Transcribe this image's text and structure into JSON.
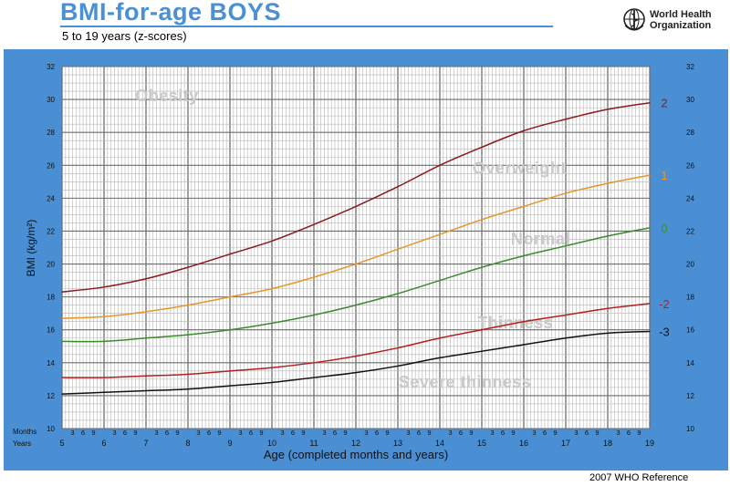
{
  "header": {
    "title": "BMI-for-age  BOYS",
    "subtitle": "5 to 19 years (z-scores)",
    "org_line1": "World Health",
    "org_line2": "Organization",
    "logo_icon": "who-emblem-icon"
  },
  "footer": {
    "reference": "2007  WHO Reference"
  },
  "colors": {
    "frame": "#4a8fd4",
    "plot_bg": "#ffffff",
    "grid_minor": "#b5b5b5",
    "grid_major": "#6e6e6e",
    "z2": "#8b1a1a",
    "z1": "#e8962a",
    "z0": "#3d8b2e",
    "zm2": "#b51f1f",
    "zm3": "#111111",
    "zone_text": "#c9c9c9"
  },
  "chart_data": {
    "type": "line",
    "title": "BMI-for-age  BOYS",
    "subtitle": "5 to 19 years (z-scores)",
    "xlabel": "Age (completed months and years)",
    "ylabel": "BMI (kg/m²)",
    "xlim": [
      5,
      19
    ],
    "ylim": [
      10,
      32
    ],
    "y_ticks": [
      "10",
      "12",
      "14",
      "16",
      "18",
      "20",
      "22",
      "24",
      "26",
      "28",
      "30",
      "32"
    ],
    "x_year_ticks": [
      "5",
      "6",
      "7",
      "8",
      "9",
      "10",
      "11",
      "12",
      "13",
      "14",
      "15",
      "16",
      "17",
      "18",
      "19"
    ],
    "month_tick_labels": [
      "3",
      "6",
      "9"
    ],
    "axis_row_labels": {
      "months": "Months",
      "years": "Years"
    },
    "zones": [
      {
        "label": "Obesity",
        "x": 7.5,
        "y": 29.9
      },
      {
        "label": "Overweight",
        "x": 15.9,
        "y": 25.5
      },
      {
        "label": "Normal",
        "x": 16.4,
        "y": 21.2
      },
      {
        "label": "Thinness",
        "x": 15.8,
        "y": 16.1
      },
      {
        "label": "Severe thinness",
        "x": 14.6,
        "y": 12.5
      }
    ],
    "grid": true,
    "series": [
      {
        "key": "z2",
        "name": "2",
        "x": [
          5,
          6,
          7,
          8,
          9,
          10,
          11,
          12,
          13,
          14,
          15,
          16,
          17,
          18,
          19
        ],
        "values": [
          18.3,
          18.6,
          19.1,
          19.8,
          20.6,
          21.4,
          22.4,
          23.5,
          24.7,
          26.0,
          27.1,
          28.1,
          28.8,
          29.4,
          29.8
        ]
      },
      {
        "key": "z1",
        "name": "1",
        "x": [
          5,
          6,
          7,
          8,
          9,
          10,
          11,
          12,
          13,
          14,
          15,
          16,
          17,
          18,
          19
        ],
        "values": [
          16.7,
          16.8,
          17.1,
          17.5,
          18.0,
          18.5,
          19.2,
          20.0,
          20.9,
          21.8,
          22.7,
          23.5,
          24.3,
          24.9,
          25.4
        ]
      },
      {
        "key": "z0",
        "name": "0",
        "x": [
          5,
          6,
          7,
          8,
          9,
          10,
          11,
          12,
          13,
          14,
          15,
          16,
          17,
          18,
          19
        ],
        "values": [
          15.3,
          15.3,
          15.5,
          15.7,
          16.0,
          16.4,
          16.9,
          17.5,
          18.2,
          19.0,
          19.8,
          20.5,
          21.1,
          21.7,
          22.2
        ]
      },
      {
        "key": "zm2",
        "name": "-2",
        "x": [
          5,
          6,
          7,
          8,
          9,
          10,
          11,
          12,
          13,
          14,
          15,
          16,
          17,
          18,
          19
        ],
        "values": [
          13.1,
          13.1,
          13.2,
          13.3,
          13.5,
          13.7,
          14.0,
          14.4,
          14.9,
          15.5,
          16.0,
          16.5,
          16.9,
          17.3,
          17.6
        ]
      },
      {
        "key": "zm3",
        "name": "-3",
        "x": [
          5,
          6,
          7,
          8,
          9,
          10,
          11,
          12,
          13,
          14,
          15,
          16,
          17,
          18,
          19
        ],
        "values": [
          12.1,
          12.2,
          12.3,
          12.4,
          12.6,
          12.8,
          13.1,
          13.4,
          13.8,
          14.3,
          14.7,
          15.1,
          15.5,
          15.8,
          15.9
        ]
      }
    ]
  }
}
